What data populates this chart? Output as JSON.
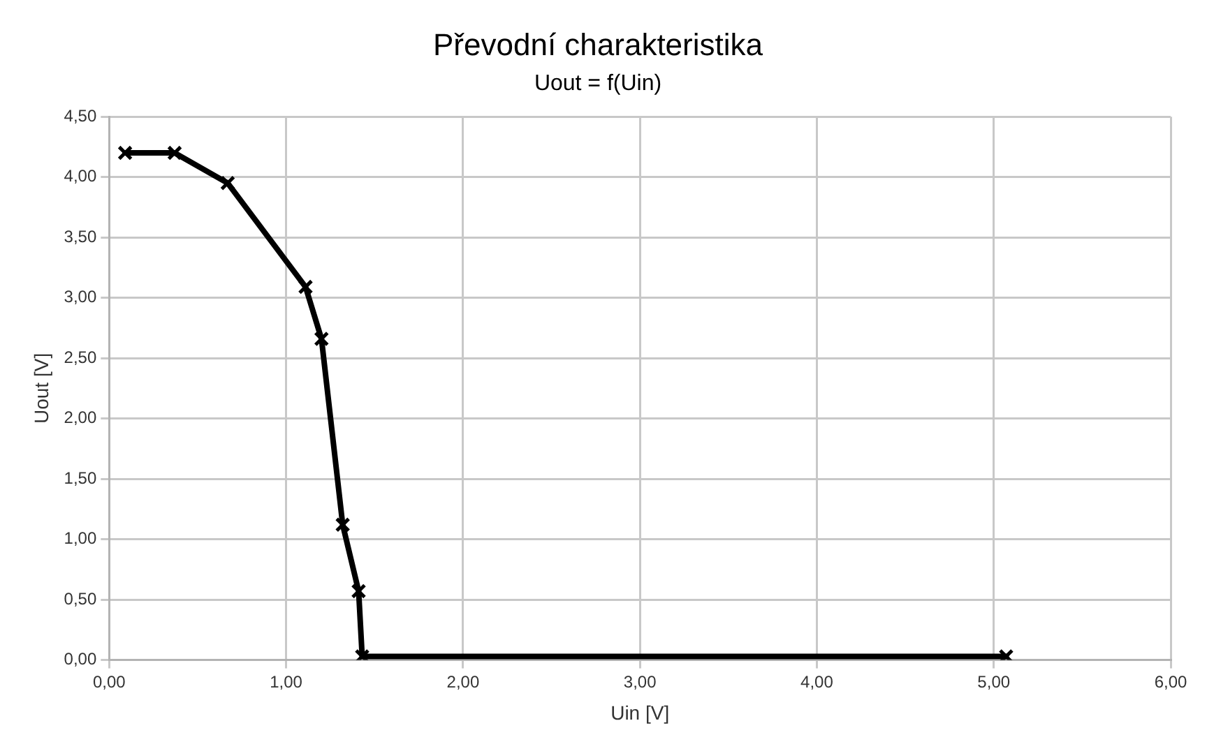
{
  "chart_data": {
    "type": "line",
    "title": "Převodní charakteristika",
    "subtitle": "Uout = f(Uin)",
    "xlabel": "Uin [V]",
    "ylabel": "Uout [V]",
    "x": [
      0.09,
      0.37,
      0.67,
      1.11,
      1.2,
      1.32,
      1.41,
      1.43,
      5.07
    ],
    "series": [
      {
        "color": "#000000",
        "values": [
          4.2,
          4.2,
          3.95,
          3.09,
          2.66,
          1.12,
          0.57,
          0.03,
          0.03
        ]
      }
    ],
    "xlim": [
      0,
      6
    ],
    "ylim": [
      0,
      4.5
    ],
    "xticks": [
      {
        "value": 0,
        "label": "0,00"
      },
      {
        "value": 1,
        "label": "1,00"
      },
      {
        "value": 2,
        "label": "2,00"
      },
      {
        "value": 3,
        "label": "3,00"
      },
      {
        "value": 4,
        "label": "4,00"
      },
      {
        "value": 5,
        "label": "5,00"
      },
      {
        "value": 6,
        "label": "6,00"
      }
    ],
    "yticks": [
      {
        "value": 0,
        "label": "0,00"
      },
      {
        "value": 0.5,
        "label": "0,50"
      },
      {
        "value": 1,
        "label": "1,00"
      },
      {
        "value": 1.5,
        "label": "1,50"
      },
      {
        "value": 2,
        "label": "2,00"
      },
      {
        "value": 2.5,
        "label": "2,50"
      },
      {
        "value": 3,
        "label": "3,00"
      },
      {
        "value": 3.5,
        "label": "3,50"
      },
      {
        "value": 4,
        "label": "4,00"
      },
      {
        "value": 4.5,
        "label": "4,50"
      }
    ],
    "grid": true,
    "legend": false,
    "marker": "cross",
    "line_style": "solid"
  }
}
